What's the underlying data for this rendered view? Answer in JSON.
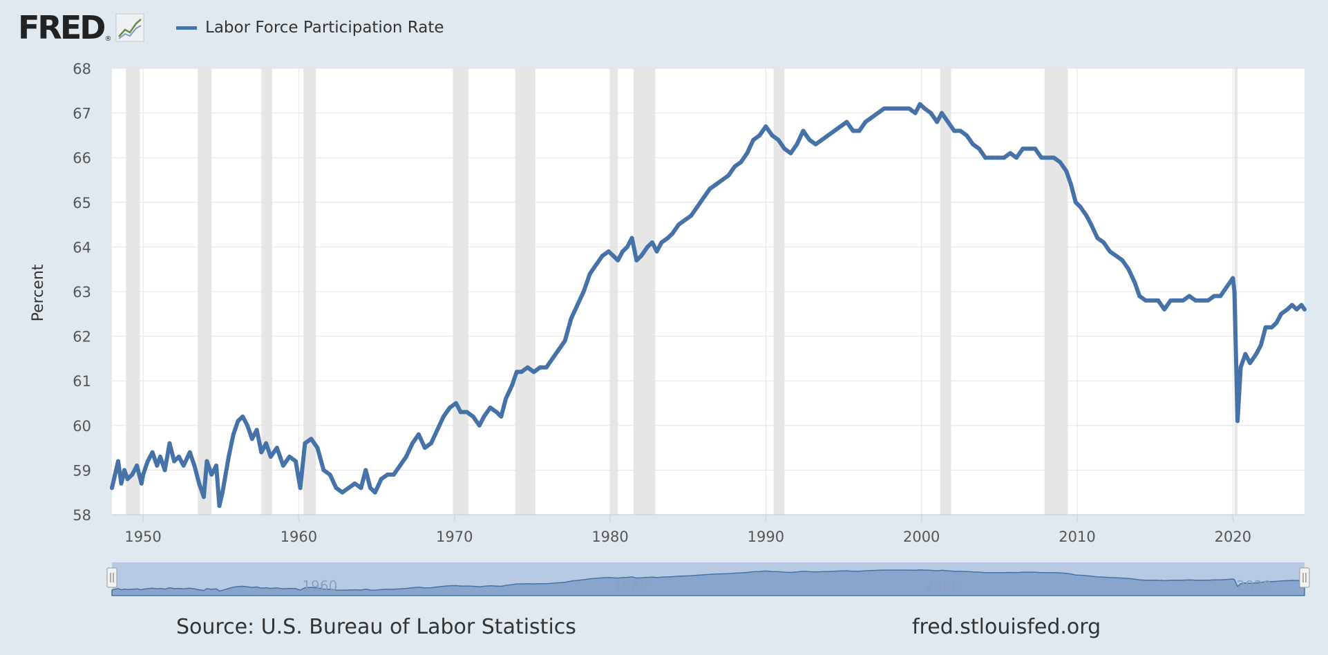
{
  "logo": {
    "text": "FRED",
    "reg": "®",
    "icon": "fred-graph-icon"
  },
  "legend": {
    "label": "Labor Force Participation Rate",
    "color": "#4572a7"
  },
  "footer": {
    "source": "Source: U.S. Bureau of Labor Statistics",
    "site": "fred.stlouisfed.org"
  },
  "colors": {
    "line": "#4572a7",
    "recession": "#e6e6e6",
    "background": "#e1e9f0",
    "navigator_fill": "#8aa5cc",
    "navigator_mask": "#b8c9e3"
  },
  "chart_data": {
    "type": "line",
    "title": "",
    "xlabel": "",
    "ylabel": "Percent",
    "xlim": [
      1948.0,
      2024.6
    ],
    "ylim": [
      58,
      68
    ],
    "yticks": [
      58,
      59,
      60,
      61,
      62,
      63,
      64,
      65,
      66,
      67,
      68
    ],
    "xticks": [
      1950,
      1960,
      1970,
      1980,
      1990,
      2000,
      2010,
      2020
    ],
    "navigator_labels": [
      1960,
      1980,
      2000,
      2020
    ],
    "grid": true,
    "legend_position": "top-left",
    "recessions": [
      [
        1948.9,
        1949.8
      ],
      [
        1953.5,
        1954.4
      ],
      [
        1957.6,
        1958.3
      ],
      [
        1960.3,
        1961.1
      ],
      [
        1969.9,
        1970.9
      ],
      [
        1973.9,
        1975.2
      ],
      [
        1980.0,
        1980.5
      ],
      [
        1981.5,
        1982.9
      ],
      [
        1990.5,
        1991.2
      ],
      [
        2001.2,
        2001.9
      ],
      [
        2007.9,
        2009.4
      ],
      [
        2020.1,
        2020.3
      ]
    ],
    "series": [
      {
        "name": "Labor Force Participation Rate",
        "points": [
          [
            1948.0,
            58.6
          ],
          [
            1948.2,
            58.9
          ],
          [
            1948.4,
            59.2
          ],
          [
            1948.6,
            58.7
          ],
          [
            1948.8,
            59.0
          ],
          [
            1949.0,
            58.8
          ],
          [
            1949.3,
            58.9
          ],
          [
            1949.6,
            59.1
          ],
          [
            1949.9,
            58.7
          ],
          [
            1950.0,
            58.9
          ],
          [
            1950.3,
            59.2
          ],
          [
            1950.6,
            59.4
          ],
          [
            1950.9,
            59.1
          ],
          [
            1951.1,
            59.3
          ],
          [
            1951.4,
            59.0
          ],
          [
            1951.7,
            59.6
          ],
          [
            1952.0,
            59.2
          ],
          [
            1952.3,
            59.3
          ],
          [
            1952.6,
            59.1
          ],
          [
            1953.0,
            59.4
          ],
          [
            1953.3,
            59.1
          ],
          [
            1953.6,
            58.7
          ],
          [
            1953.9,
            58.4
          ],
          [
            1954.1,
            59.2
          ],
          [
            1954.4,
            58.9
          ],
          [
            1954.7,
            59.1
          ],
          [
            1954.9,
            58.2
          ],
          [
            1955.1,
            58.5
          ],
          [
            1955.5,
            59.3
          ],
          [
            1955.8,
            59.8
          ],
          [
            1956.1,
            60.1
          ],
          [
            1956.4,
            60.2
          ],
          [
            1956.7,
            60.0
          ],
          [
            1957.0,
            59.7
          ],
          [
            1957.3,
            59.9
          ],
          [
            1957.6,
            59.4
          ],
          [
            1957.9,
            59.6
          ],
          [
            1958.2,
            59.3
          ],
          [
            1958.6,
            59.5
          ],
          [
            1959.0,
            59.1
          ],
          [
            1959.4,
            59.3
          ],
          [
            1959.8,
            59.2
          ],
          [
            1960.1,
            58.6
          ],
          [
            1960.4,
            59.6
          ],
          [
            1960.8,
            59.7
          ],
          [
            1961.2,
            59.5
          ],
          [
            1961.6,
            59.0
          ],
          [
            1962.0,
            58.9
          ],
          [
            1962.4,
            58.6
          ],
          [
            1962.8,
            58.5
          ],
          [
            1963.2,
            58.6
          ],
          [
            1963.6,
            58.7
          ],
          [
            1964.0,
            58.6
          ],
          [
            1964.3,
            59.0
          ],
          [
            1964.6,
            58.6
          ],
          [
            1964.9,
            58.5
          ],
          [
            1965.3,
            58.8
          ],
          [
            1965.7,
            58.9
          ],
          [
            1966.1,
            58.9
          ],
          [
            1966.5,
            59.1
          ],
          [
            1966.9,
            59.3
          ],
          [
            1967.3,
            59.6
          ],
          [
            1967.7,
            59.8
          ],
          [
            1968.1,
            59.5
          ],
          [
            1968.5,
            59.6
          ],
          [
            1968.9,
            59.9
          ],
          [
            1969.3,
            60.2
          ],
          [
            1969.7,
            60.4
          ],
          [
            1970.1,
            60.5
          ],
          [
            1970.4,
            60.3
          ],
          [
            1970.8,
            60.3
          ],
          [
            1971.2,
            60.2
          ],
          [
            1971.6,
            60.0
          ],
          [
            1971.9,
            60.2
          ],
          [
            1972.3,
            60.4
          ],
          [
            1972.7,
            60.3
          ],
          [
            1973.0,
            60.2
          ],
          [
            1973.3,
            60.6
          ],
          [
            1973.7,
            60.9
          ],
          [
            1974.0,
            61.2
          ],
          [
            1974.3,
            61.2
          ],
          [
            1974.7,
            61.3
          ],
          [
            1975.1,
            61.2
          ],
          [
            1975.5,
            61.3
          ],
          [
            1975.9,
            61.3
          ],
          [
            1976.3,
            61.5
          ],
          [
            1976.7,
            61.7
          ],
          [
            1977.1,
            61.9
          ],
          [
            1977.5,
            62.4
          ],
          [
            1977.9,
            62.7
          ],
          [
            1978.3,
            63.0
          ],
          [
            1978.7,
            63.4
          ],
          [
            1979.1,
            63.6
          ],
          [
            1979.5,
            63.8
          ],
          [
            1979.9,
            63.9
          ],
          [
            1980.2,
            63.8
          ],
          [
            1980.5,
            63.7
          ],
          [
            1980.8,
            63.9
          ],
          [
            1981.1,
            64.0
          ],
          [
            1981.4,
            64.2
          ],
          [
            1981.7,
            63.7
          ],
          [
            1982.0,
            63.8
          ],
          [
            1982.4,
            64.0
          ],
          [
            1982.7,
            64.1
          ],
          [
            1983.0,
            63.9
          ],
          [
            1983.3,
            64.1
          ],
          [
            1983.7,
            64.2
          ],
          [
            1984.0,
            64.3
          ],
          [
            1984.4,
            64.5
          ],
          [
            1984.8,
            64.6
          ],
          [
            1985.2,
            64.7
          ],
          [
            1985.6,
            64.9
          ],
          [
            1986.0,
            65.1
          ],
          [
            1986.4,
            65.3
          ],
          [
            1986.8,
            65.4
          ],
          [
            1987.2,
            65.5
          ],
          [
            1987.6,
            65.6
          ],
          [
            1988.0,
            65.8
          ],
          [
            1988.4,
            65.9
          ],
          [
            1988.8,
            66.1
          ],
          [
            1989.2,
            66.4
          ],
          [
            1989.6,
            66.5
          ],
          [
            1990.0,
            66.7
          ],
          [
            1990.4,
            66.5
          ],
          [
            1990.8,
            66.4
          ],
          [
            1991.2,
            66.2
          ],
          [
            1991.6,
            66.1
          ],
          [
            1992.0,
            66.3
          ],
          [
            1992.4,
            66.6
          ],
          [
            1992.8,
            66.4
          ],
          [
            1993.2,
            66.3
          ],
          [
            1993.6,
            66.4
          ],
          [
            1994.0,
            66.5
          ],
          [
            1994.4,
            66.6
          ],
          [
            1994.8,
            66.7
          ],
          [
            1995.2,
            66.8
          ],
          [
            1995.6,
            66.6
          ],
          [
            1996.0,
            66.6
          ],
          [
            1996.4,
            66.8
          ],
          [
            1996.8,
            66.9
          ],
          [
            1997.2,
            67.0
          ],
          [
            1997.6,
            67.1
          ],
          [
            1998.0,
            67.1
          ],
          [
            1998.4,
            67.1
          ],
          [
            1998.8,
            67.1
          ],
          [
            1999.2,
            67.1
          ],
          [
            1999.6,
            67.0
          ],
          [
            1999.9,
            67.2
          ],
          [
            2000.2,
            67.1
          ],
          [
            2000.6,
            67.0
          ],
          [
            2001.0,
            66.8
          ],
          [
            2001.3,
            67.0
          ],
          [
            2001.7,
            66.8
          ],
          [
            2002.1,
            66.6
          ],
          [
            2002.5,
            66.6
          ],
          [
            2002.9,
            66.5
          ],
          [
            2003.3,
            66.3
          ],
          [
            2003.7,
            66.2
          ],
          [
            2004.1,
            66.0
          ],
          [
            2004.5,
            66.0
          ],
          [
            2004.9,
            66.0
          ],
          [
            2005.3,
            66.0
          ],
          [
            2005.7,
            66.1
          ],
          [
            2006.1,
            66.0
          ],
          [
            2006.5,
            66.2
          ],
          [
            2006.9,
            66.2
          ],
          [
            2007.3,
            66.2
          ],
          [
            2007.7,
            66.0
          ],
          [
            2008.1,
            66.0
          ],
          [
            2008.5,
            66.0
          ],
          [
            2008.9,
            65.9
          ],
          [
            2009.3,
            65.7
          ],
          [
            2009.6,
            65.4
          ],
          [
            2009.9,
            65.0
          ],
          [
            2010.2,
            64.9
          ],
          [
            2010.6,
            64.7
          ],
          [
            2010.9,
            64.5
          ],
          [
            2011.3,
            64.2
          ],
          [
            2011.7,
            64.1
          ],
          [
            2012.1,
            63.9
          ],
          [
            2012.5,
            63.8
          ],
          [
            2012.9,
            63.7
          ],
          [
            2013.3,
            63.5
          ],
          [
            2013.7,
            63.2
          ],
          [
            2014.0,
            62.9
          ],
          [
            2014.4,
            62.8
          ],
          [
            2014.8,
            62.8
          ],
          [
            2015.2,
            62.8
          ],
          [
            2015.6,
            62.6
          ],
          [
            2016.0,
            62.8
          ],
          [
            2016.4,
            62.8
          ],
          [
            2016.8,
            62.8
          ],
          [
            2017.2,
            62.9
          ],
          [
            2017.6,
            62.8
          ],
          [
            2018.0,
            62.8
          ],
          [
            2018.4,
            62.8
          ],
          [
            2018.8,
            62.9
          ],
          [
            2019.2,
            62.9
          ],
          [
            2019.6,
            63.1
          ],
          [
            2020.0,
            63.3
          ],
          [
            2020.1,
            63.0
          ],
          [
            2020.3,
            60.1
          ],
          [
            2020.5,
            61.3
          ],
          [
            2020.8,
            61.6
          ],
          [
            2021.1,
            61.4
          ],
          [
            2021.5,
            61.6
          ],
          [
            2021.8,
            61.8
          ],
          [
            2022.1,
            62.2
          ],
          [
            2022.5,
            62.2
          ],
          [
            2022.8,
            62.3
          ],
          [
            2023.1,
            62.5
          ],
          [
            2023.5,
            62.6
          ],
          [
            2023.8,
            62.7
          ],
          [
            2024.1,
            62.6
          ],
          [
            2024.4,
            62.7
          ],
          [
            2024.6,
            62.6
          ]
        ]
      }
    ]
  }
}
